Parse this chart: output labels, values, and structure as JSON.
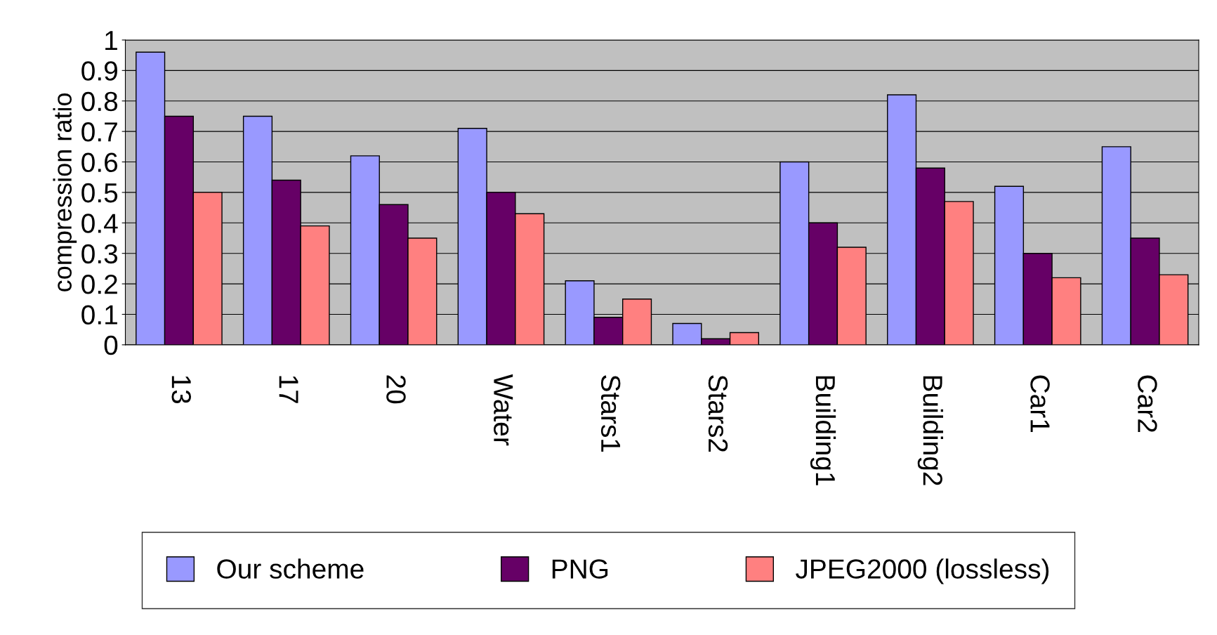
{
  "chart_data": {
    "type": "bar",
    "ylabel": "compression ratio",
    "categories": [
      "13",
      "17",
      "20",
      "Water",
      "Stars1",
      "Stars2",
      "Building1",
      "Building2",
      "Car1",
      "Car2"
    ],
    "series": [
      {
        "name": "Our scheme",
        "color": "#9999ff",
        "values": [
          0.96,
          0.75,
          0.62,
          0.71,
          0.21,
          0.07,
          0.6,
          0.82,
          0.52,
          0.65
        ]
      },
      {
        "name": "PNG",
        "color": "#660066",
        "values": [
          0.75,
          0.54,
          0.46,
          0.5,
          0.09,
          0.02,
          0.4,
          0.58,
          0.3,
          0.35
        ]
      },
      {
        "name": "JPEG2000 (lossless)",
        "color": "#ff8080",
        "values": [
          0.5,
          0.39,
          0.35,
          0.43,
          0.15,
          0.04,
          0.32,
          0.47,
          0.22,
          0.23
        ]
      }
    ],
    "ylim": [
      0,
      1
    ],
    "yticks": [
      0,
      0.1,
      0.2,
      0.3,
      0.4,
      0.5,
      0.6,
      0.7,
      0.8,
      0.9,
      1
    ],
    "grid": "y",
    "legend": "bottom"
  }
}
